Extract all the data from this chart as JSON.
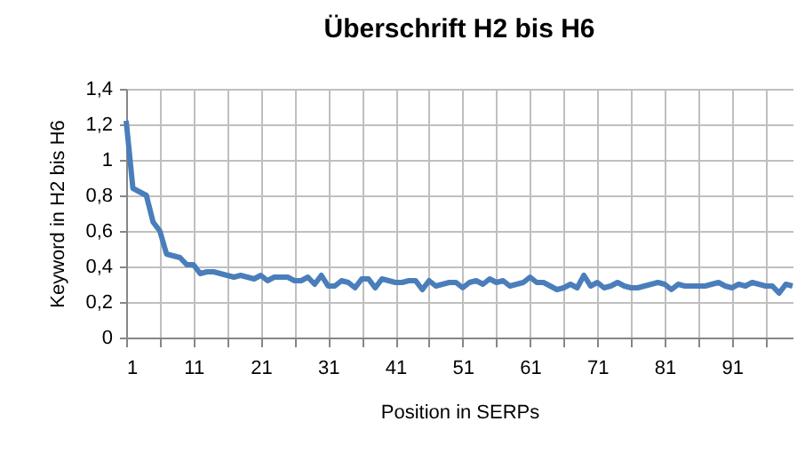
{
  "chart_data": {
    "type": "line",
    "title": "Überschrift H2 bis H6",
    "xlabel": "Position in SERPs",
    "ylabel": "Keyword in H2 bis H6",
    "x": [
      1,
      2,
      3,
      4,
      5,
      6,
      7,
      8,
      9,
      10,
      11,
      12,
      13,
      14,
      15,
      16,
      17,
      18,
      19,
      20,
      21,
      22,
      23,
      24,
      25,
      26,
      27,
      28,
      29,
      30,
      31,
      32,
      33,
      34,
      35,
      36,
      37,
      38,
      39,
      40,
      41,
      42,
      43,
      44,
      45,
      46,
      47,
      48,
      49,
      50,
      51,
      52,
      53,
      54,
      55,
      56,
      57,
      58,
      59,
      60,
      61,
      62,
      63,
      64,
      65,
      66,
      67,
      68,
      69,
      70,
      71,
      72,
      73,
      74,
      75,
      76,
      77,
      78,
      79,
      80,
      81,
      82,
      83,
      84,
      85,
      86,
      87,
      88,
      89,
      90,
      91,
      92,
      93,
      94,
      95,
      96,
      97,
      98,
      99,
      100
    ],
    "series": [
      {
        "color": "#4a7ebb",
        "values": [
          1.22,
          0.84,
          0.82,
          0.8,
          0.65,
          0.6,
          0.47,
          0.46,
          0.45,
          0.41,
          0.41,
          0.36,
          0.37,
          0.37,
          0.36,
          0.35,
          0.34,
          0.35,
          0.34,
          0.33,
          0.35,
          0.32,
          0.34,
          0.34,
          0.34,
          0.32,
          0.32,
          0.34,
          0.3,
          0.35,
          0.29,
          0.29,
          0.32,
          0.31,
          0.28,
          0.33,
          0.33,
          0.28,
          0.33,
          0.32,
          0.31,
          0.31,
          0.32,
          0.32,
          0.27,
          0.32,
          0.29,
          0.3,
          0.31,
          0.31,
          0.28,
          0.31,
          0.32,
          0.3,
          0.33,
          0.31,
          0.32,
          0.29,
          0.3,
          0.31,
          0.34,
          0.31,
          0.31,
          0.29,
          0.27,
          0.28,
          0.3,
          0.28,
          0.35,
          0.29,
          0.31,
          0.28,
          0.29,
          0.31,
          0.29,
          0.28,
          0.28,
          0.29,
          0.3,
          0.31,
          0.3,
          0.27,
          0.3,
          0.29,
          0.29,
          0.29,
          0.29,
          0.3,
          0.31,
          0.29,
          0.28,
          0.3,
          0.29,
          0.31,
          0.3,
          0.29,
          0.29,
          0.25,
          0.3,
          0.29
        ]
      }
    ],
    "xlim": [
      1,
      100
    ],
    "xticks": [
      1,
      {
        "value": 6,
        "label": null
      },
      11,
      {
        "value": 16,
        "label": null
      },
      21,
      {
        "value": 26,
        "label": null
      },
      31,
      {
        "value": 36,
        "label": null
      },
      41,
      {
        "value": 46,
        "label": null
      },
      51,
      {
        "value": 56,
        "label": null
      },
      61,
      {
        "value": 66,
        "label": null
      },
      71,
      {
        "value": 76,
        "label": null
      },
      81,
      {
        "value": 86,
        "label": null
      },
      91,
      {
        "value": 96,
        "label": null
      }
    ],
    "ylim": [
      0,
      1.4
    ],
    "yticks": [
      0,
      {
        "value": 0.2,
        "label": "0,2"
      },
      {
        "value": 0.4,
        "label": "0,4"
      },
      {
        "value": 0.6,
        "label": "0,6"
      },
      {
        "value": 0.8,
        "label": "0,8"
      },
      1,
      {
        "value": 1.2,
        "label": "1,2"
      },
      {
        "value": 1.4,
        "label": "1,4"
      }
    ],
    "grid": true,
    "marker": "none",
    "line_style": "solid"
  }
}
